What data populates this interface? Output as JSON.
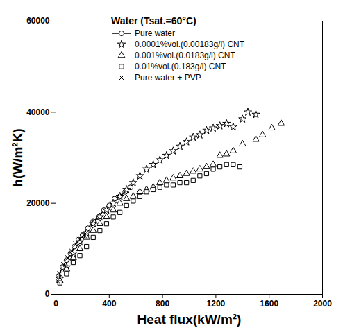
{
  "chart_data": {
    "type": "scatter",
    "title": "Water (Tsat.=60°C)",
    "x_label": "Heat flux(kW/m²)",
    "y_label": "h(W/m²K)",
    "xlim": [
      0,
      2000
    ],
    "xticks": [
      0,
      400,
      800,
      1200,
      1600,
      2000
    ],
    "ylim": [
      0,
      60000
    ],
    "yticks": [
      0,
      20000,
      40000,
      60000
    ],
    "grid": false,
    "legend": "top",
    "series": [
      {
        "name": "Pure water",
        "color": "#000000",
        "marker": "circle",
        "line_style": "solid",
        "x": [
          20,
          50,
          80,
          110,
          140,
          170,
          200,
          240,
          280,
          320,
          360,
          400,
          440,
          480,
          520,
          560
        ],
        "values": [
          4000,
          6000,
          7500,
          9000,
          10500,
          12000,
          13000,
          14500,
          16000,
          17000,
          18500,
          19500,
          21000,
          21500,
          22500,
          23500
        ]
      },
      {
        "name": "0.0001%vol.(0.00183g/l) CNT",
        "color": "#000000",
        "marker": "star",
        "x": [
          30,
          80,
          130,
          180,
          230,
          280,
          330,
          380,
          430,
          480,
          530,
          580,
          630,
          680,
          730,
          780,
          830,
          880,
          930,
          980,
          1030,
          1080,
          1130,
          1180,
          1230,
          1280,
          1330,
          1400,
          1440,
          1500
        ],
        "values": [
          3500,
          6000,
          9000,
          11500,
          13500,
          15500,
          17000,
          18500,
          20000,
          21500,
          23000,
          24500,
          26000,
          27500,
          28500,
          29500,
          30500,
          31500,
          32500,
          33500,
          34500,
          35000,
          36000,
          36500,
          37000,
          37500,
          36800,
          38500,
          40000,
          39500
        ]
      },
      {
        "name": "0.001%vol.(0.0183g/l) CNT",
        "color": "#000000",
        "marker": "triangle",
        "x": [
          30,
          80,
          130,
          180,
          230,
          280,
          330,
          380,
          430,
          480,
          530,
          580,
          630,
          680,
          730,
          780,
          830,
          880,
          930,
          980,
          1030,
          1080,
          1130,
          1180,
          1230,
          1280,
          1330,
          1400,
          1500,
          1550,
          1620,
          1690
        ],
        "values": [
          3000,
          5500,
          8000,
          10000,
          12500,
          14000,
          15500,
          17000,
          18500,
          20000,
          21000,
          21500,
          22500,
          23000,
          23500,
          24500,
          25000,
          25500,
          26000,
          26500,
          27000,
          27500,
          28000,
          28500,
          30500,
          30800,
          31500,
          33000,
          34000,
          35000,
          36500,
          37500
        ]
      },
      {
        "name": "0.01%vol.(0.183g/l) CNT",
        "color": "#000000",
        "marker": "square",
        "x": [
          30,
          80,
          130,
          180,
          230,
          280,
          330,
          380,
          430,
          480,
          530,
          580,
          630,
          680,
          730,
          780,
          830,
          880,
          930,
          980,
          1030,
          1080,
          1130,
          1180,
          1230,
          1280,
          1330,
          1380
        ],
        "values": [
          2500,
          4500,
          7000,
          8500,
          10500,
          12500,
          14000,
          15500,
          17000,
          18000,
          19500,
          20500,
          21500,
          22500,
          23000,
          23500,
          24000,
          24000,
          24500,
          24500,
          25000,
          26000,
          26500,
          27500,
          28000,
          28500,
          28500,
          28000
        ]
      },
      {
        "name": "Pure water + PVP",
        "color": "#000000",
        "marker": "times",
        "x": [
          10,
          30,
          60,
          90,
          120,
          150,
          180,
          210
        ],
        "values": [
          3000,
          4500,
          6500,
          8000,
          9500,
          11000,
          12000,
          13000
        ]
      }
    ]
  }
}
